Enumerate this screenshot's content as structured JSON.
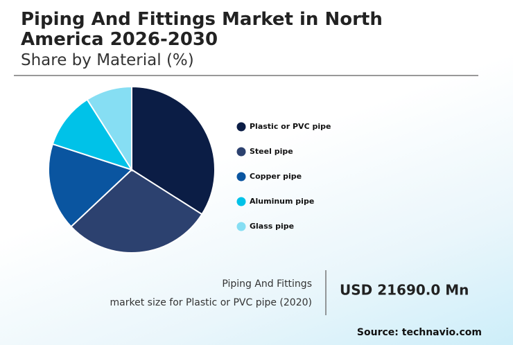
{
  "chart_data": {
    "type": "pie",
    "title": "Piping And Fittings Market in North America 2026-2030",
    "subtitle": "Share by Material (%)",
    "categories": [
      "Plastic or PVC pipe",
      "Steel pipe",
      "Copper pipe",
      "Aluminum pipe",
      "Glass pipe"
    ],
    "values": [
      34,
      29,
      17,
      11,
      9
    ],
    "colors": [
      "#0b1d45",
      "#2c416f",
      "#0a55a0",
      "#00c2e8",
      "#86def3"
    ],
    "callout_label": [
      "Piping And Fittings",
      "market size for Plastic or PVC pipe (2020)"
    ],
    "callout_value": "USD 21690.0 Mn",
    "source": "Source: technavio.com"
  }
}
